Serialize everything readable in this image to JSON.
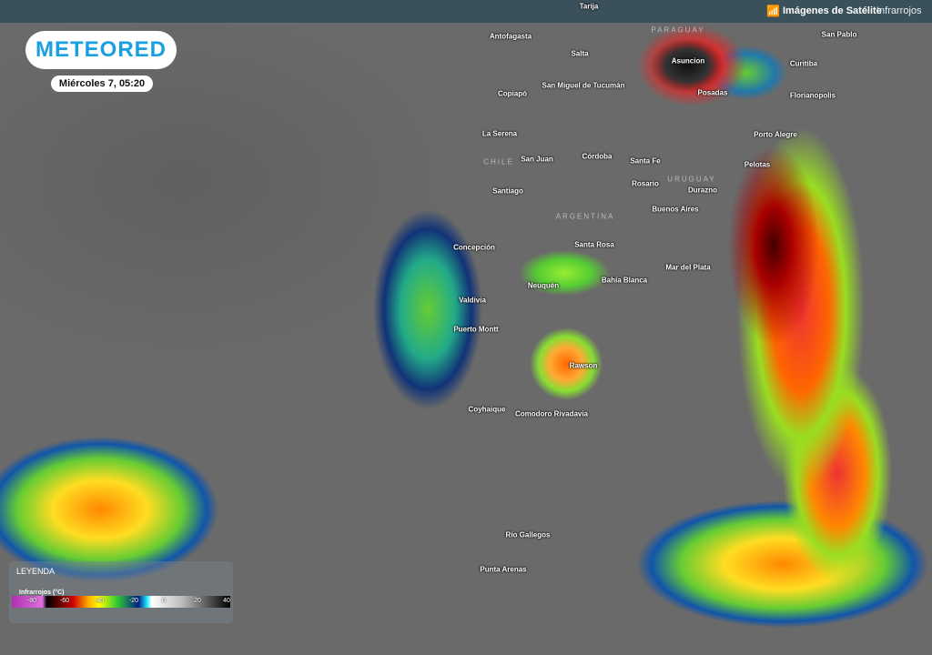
{
  "header": {
    "nav_icon": "satellite-signal-icon",
    "section": "Imágenes de Satélite",
    "subsection": "Infrarrojos"
  },
  "brand": {
    "logo_text": "METEORED",
    "datetime": "Miércoles 7, 05:20",
    "color": "#1aa0e0"
  },
  "map": {
    "countries": [
      "PARAGUAY",
      "CHILE",
      "URUGUAY",
      "ARGENTINA"
    ],
    "cities": [
      "Tarija",
      "Antofagasta",
      "Salta",
      "San Miguel de Tucumán",
      "Copiapó",
      "La Serena",
      "San Juan",
      "Córdoba",
      "Santa Fe",
      "Asuncion",
      "Posadas",
      "San Pablo",
      "Curitiba",
      "Florianopolis",
      "Porto Alegre",
      "Pelotas",
      "Rosario",
      "Durazno",
      "Santiago",
      "Buenos Aires",
      "Santa Rosa",
      "Concepción",
      "Mar del Plata",
      "Bahía Blanca",
      "Neuquén",
      "Valdivia",
      "Puerto Montt",
      "Rawson",
      "Coyhaique",
      "Comodoro Rivadavia",
      "Río Gallegos",
      "Punta Arenas"
    ]
  },
  "legend": {
    "title": "LEYENDA",
    "subtitle": "Infrarrojos (°C)",
    "ticks": [
      "-80",
      "-60",
      "-40",
      "-20",
      "0",
      "20",
      "40"
    ]
  }
}
